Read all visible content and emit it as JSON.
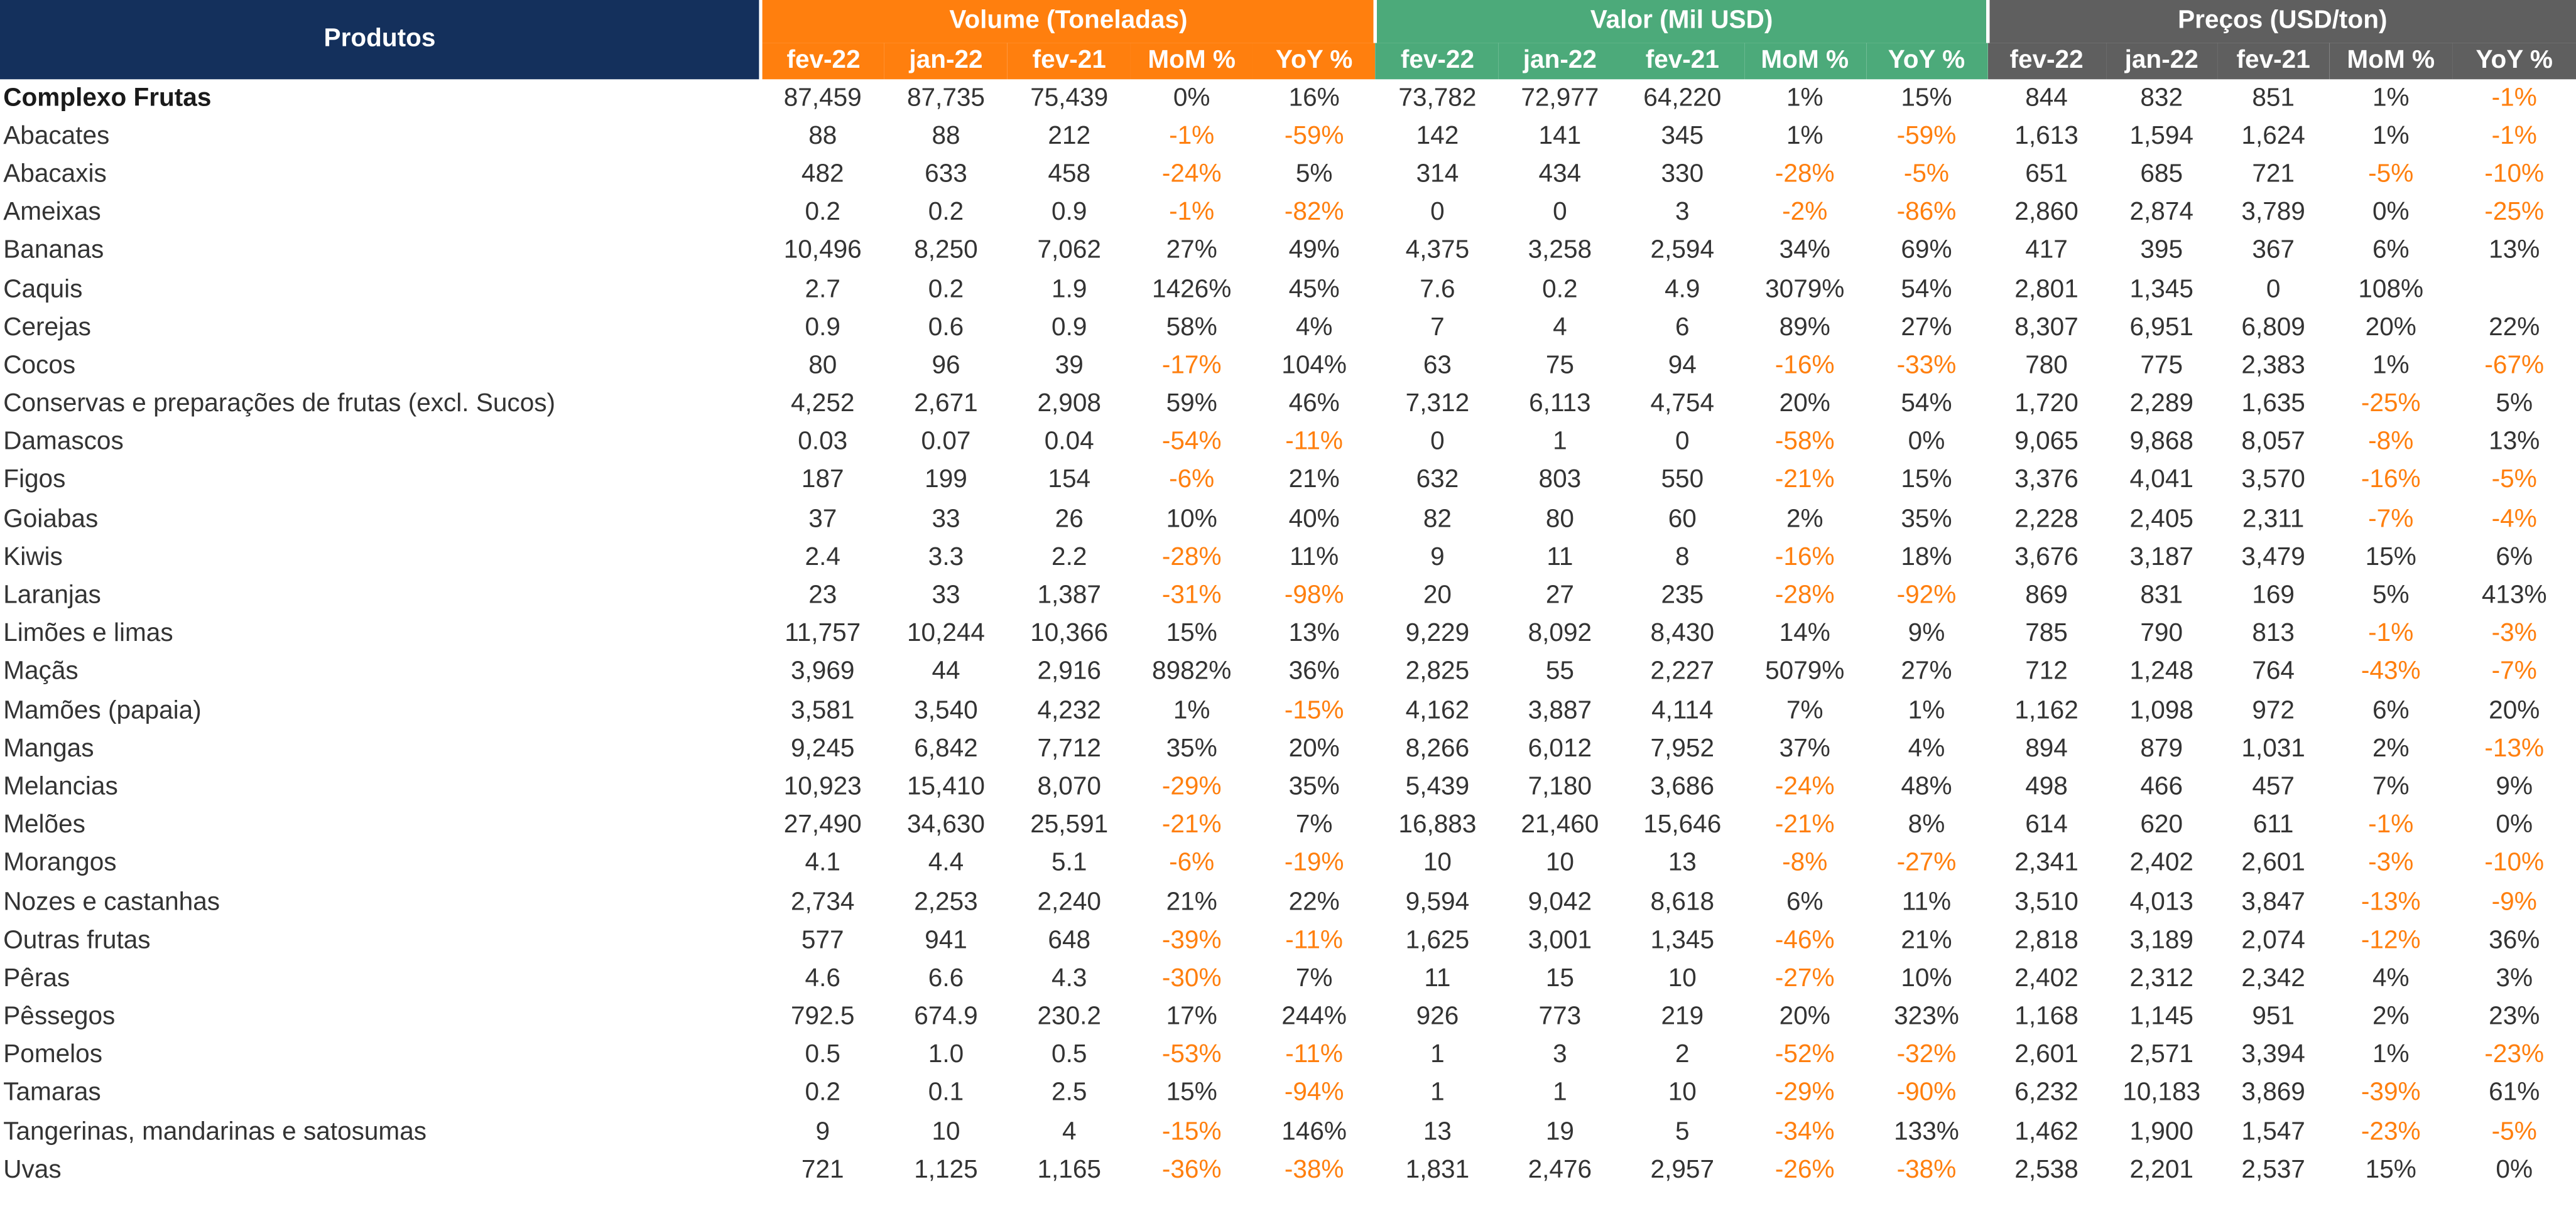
{
  "header": {
    "produtos": "Produtos",
    "groups": [
      "Volume (Toneladas)",
      "Valor (Mil USD)",
      "Preços (USD/ton)"
    ],
    "sub": [
      "fev-22",
      "jan-22",
      "fev-21",
      "MoM %",
      "YoY %"
    ]
  },
  "colors": {
    "navy": "#14305c",
    "orange": "#ff7f0e",
    "green": "#4caa7a",
    "gray": "#5f5f5f",
    "negative_text": "#ff7f0e"
  },
  "rows": [
    {
      "name": "Complexo Frutas",
      "bold": true,
      "v": [
        "87,459",
        "87,735",
        "75,439",
        "0%",
        "16%",
        "73,782",
        "72,977",
        "64,220",
        "1%",
        "15%",
        "844",
        "832",
        "851",
        "1%",
        "-1%"
      ]
    },
    {
      "name": "Abacates",
      "v": [
        "88",
        "88",
        "212",
        "-1%",
        "-59%",
        "142",
        "141",
        "345",
        "1%",
        "-59%",
        "1,613",
        "1,594",
        "1,624",
        "1%",
        "-1%"
      ]
    },
    {
      "name": "Abacaxis",
      "v": [
        "482",
        "633",
        "458",
        "-24%",
        "5%",
        "314",
        "434",
        "330",
        "-28%",
        "-5%",
        "651",
        "685",
        "721",
        "-5%",
        "-10%"
      ]
    },
    {
      "name": "Ameixas",
      "v": [
        "0.2",
        "0.2",
        "0.9",
        "-1%",
        "-82%",
        "0",
        "0",
        "3",
        "-2%",
        "-86%",
        "2,860",
        "2,874",
        "3,789",
        "0%",
        "-25%"
      ]
    },
    {
      "name": "Bananas",
      "v": [
        "10,496",
        "8,250",
        "7,062",
        "27%",
        "49%",
        "4,375",
        "3,258",
        "2,594",
        "34%",
        "69%",
        "417",
        "395",
        "367",
        "6%",
        "13%"
      ]
    },
    {
      "name": "Caquis",
      "v": [
        "2.7",
        "0.2",
        "1.9",
        "1426%",
        "45%",
        "7.6",
        "0.2",
        "4.9",
        "3079%",
        "54%",
        "2,801",
        "1,345",
        "0",
        "108%",
        ""
      ]
    },
    {
      "name": "Cerejas",
      "v": [
        "0.9",
        "0.6",
        "0.9",
        "58%",
        "4%",
        "7",
        "4",
        "6",
        "89%",
        "27%",
        "8,307",
        "6,951",
        "6,809",
        "20%",
        "22%"
      ]
    },
    {
      "name": "Cocos",
      "v": [
        "80",
        "96",
        "39",
        "-17%",
        "104%",
        "63",
        "75",
        "94",
        "-16%",
        "-33%",
        "780",
        "775",
        "2,383",
        "1%",
        "-67%"
      ]
    },
    {
      "name": "Conservas e preparações de frutas (excl. Sucos)",
      "v": [
        "4,252",
        "2,671",
        "2,908",
        "59%",
        "46%",
        "7,312",
        "6,113",
        "4,754",
        "20%",
        "54%",
        "1,720",
        "2,289",
        "1,635",
        "-25%",
        "5%"
      ]
    },
    {
      "name": "Damascos",
      "v": [
        "0.03",
        "0.07",
        "0.04",
        "-54%",
        "-11%",
        "0",
        "1",
        "0",
        "-58%",
        "0%",
        "9,065",
        "9,868",
        "8,057",
        "-8%",
        "13%"
      ]
    },
    {
      "name": "Figos",
      "v": [
        "187",
        "199",
        "154",
        "-6%",
        "21%",
        "632",
        "803",
        "550",
        "-21%",
        "15%",
        "3,376",
        "4,041",
        "3,570",
        "-16%",
        "-5%"
      ]
    },
    {
      "name": "Goiabas",
      "v": [
        "37",
        "33",
        "26",
        "10%",
        "40%",
        "82",
        "80",
        "60",
        "2%",
        "35%",
        "2,228",
        "2,405",
        "2,311",
        "-7%",
        "-4%"
      ]
    },
    {
      "name": "Kiwis",
      "v": [
        "2.4",
        "3.3",
        "2.2",
        "-28%",
        "11%",
        "9",
        "11",
        "8",
        "-16%",
        "18%",
        "3,676",
        "3,187",
        "3,479",
        "15%",
        "6%"
      ]
    },
    {
      "name": "Laranjas",
      "v": [
        "23",
        "33",
        "1,387",
        "-31%",
        "-98%",
        "20",
        "27",
        "235",
        "-28%",
        "-92%",
        "869",
        "831",
        "169",
        "5%",
        "413%"
      ]
    },
    {
      "name": "Limões e limas",
      "v": [
        "11,757",
        "10,244",
        "10,366",
        "15%",
        "13%",
        "9,229",
        "8,092",
        "8,430",
        "14%",
        "9%",
        "785",
        "790",
        "813",
        "-1%",
        "-3%"
      ]
    },
    {
      "name": "Maçãs",
      "v": [
        "3,969",
        "44",
        "2,916",
        "8982%",
        "36%",
        "2,825",
        "55",
        "2,227",
        "5079%",
        "27%",
        "712",
        "1,248",
        "764",
        "-43%",
        "-7%"
      ]
    },
    {
      "name": "Mamões (papaia)",
      "v": [
        "3,581",
        "3,540",
        "4,232",
        "1%",
        "-15%",
        "4,162",
        "3,887",
        "4,114",
        "7%",
        "1%",
        "1,162",
        "1,098",
        "972",
        "6%",
        "20%"
      ]
    },
    {
      "name": "Mangas",
      "v": [
        "9,245",
        "6,842",
        "7,712",
        "35%",
        "20%",
        "8,266",
        "6,012",
        "7,952",
        "37%",
        "4%",
        "894",
        "879",
        "1,031",
        "2%",
        "-13%"
      ]
    },
    {
      "name": "Melancias",
      "v": [
        "10,923",
        "15,410",
        "8,070",
        "-29%",
        "35%",
        "5,439",
        "7,180",
        "3,686",
        "-24%",
        "48%",
        "498",
        "466",
        "457",
        "7%",
        "9%"
      ]
    },
    {
      "name": "Melões",
      "v": [
        "27,490",
        "34,630",
        "25,591",
        "-21%",
        "7%",
        "16,883",
        "21,460",
        "15,646",
        "-21%",
        "8%",
        "614",
        "620",
        "611",
        "-1%",
        "0%"
      ]
    },
    {
      "name": "Morangos",
      "v": [
        "4.1",
        "4.4",
        "5.1",
        "-6%",
        "-19%",
        "10",
        "10",
        "13",
        "-8%",
        "-27%",
        "2,341",
        "2,402",
        "2,601",
        "-3%",
        "-10%"
      ]
    },
    {
      "name": "Nozes e castanhas",
      "v": [
        "2,734",
        "2,253",
        "2,240",
        "21%",
        "22%",
        "9,594",
        "9,042",
        "8,618",
        "6%",
        "11%",
        "3,510",
        "4,013",
        "3,847",
        "-13%",
        "-9%"
      ]
    },
    {
      "name": "Outras frutas",
      "v": [
        "577",
        "941",
        "648",
        "-39%",
        "-11%",
        "1,625",
        "3,001",
        "1,345",
        "-46%",
        "21%",
        "2,818",
        "3,189",
        "2,074",
        "-12%",
        "36%"
      ]
    },
    {
      "name": "Pêras",
      "v": [
        "4.6",
        "6.6",
        "4.3",
        "-30%",
        "7%",
        "11",
        "15",
        "10",
        "-27%",
        "10%",
        "2,402",
        "2,312",
        "2,342",
        "4%",
        "3%"
      ]
    },
    {
      "name": "Pêssegos",
      "v": [
        "792.5",
        "674.9",
        "230.2",
        "17%",
        "244%",
        "926",
        "773",
        "219",
        "20%",
        "323%",
        "1,168",
        "1,145",
        "951",
        "2%",
        "23%"
      ]
    },
    {
      "name": "Pomelos",
      "v": [
        "0.5",
        "1.0",
        "0.5",
        "-53%",
        "-11%",
        "1",
        "3",
        "2",
        "-52%",
        "-32%",
        "2,601",
        "2,571",
        "3,394",
        "1%",
        "-23%"
      ]
    },
    {
      "name": "Tamaras",
      "v": [
        "0.2",
        "0.1",
        "2.5",
        "15%",
        "-94%",
        "1",
        "1",
        "10",
        "-29%",
        "-90%",
        "6,232",
        "10,183",
        "3,869",
        "-39%",
        "61%"
      ]
    },
    {
      "name": "Tangerinas, mandarinas e satosumas",
      "v": [
        "9",
        "10",
        "4",
        "-15%",
        "146%",
        "13",
        "19",
        "5",
        "-34%",
        "133%",
        "1,462",
        "1,900",
        "1,547",
        "-23%",
        "-5%"
      ]
    },
    {
      "name": "Uvas",
      "v": [
        "721",
        "1,125",
        "1,165",
        "-36%",
        "-38%",
        "1,831",
        "2,476",
        "2,957",
        "-26%",
        "-38%",
        "2,538",
        "2,201",
        "2,537",
        "15%",
        "0%"
      ]
    }
  ]
}
